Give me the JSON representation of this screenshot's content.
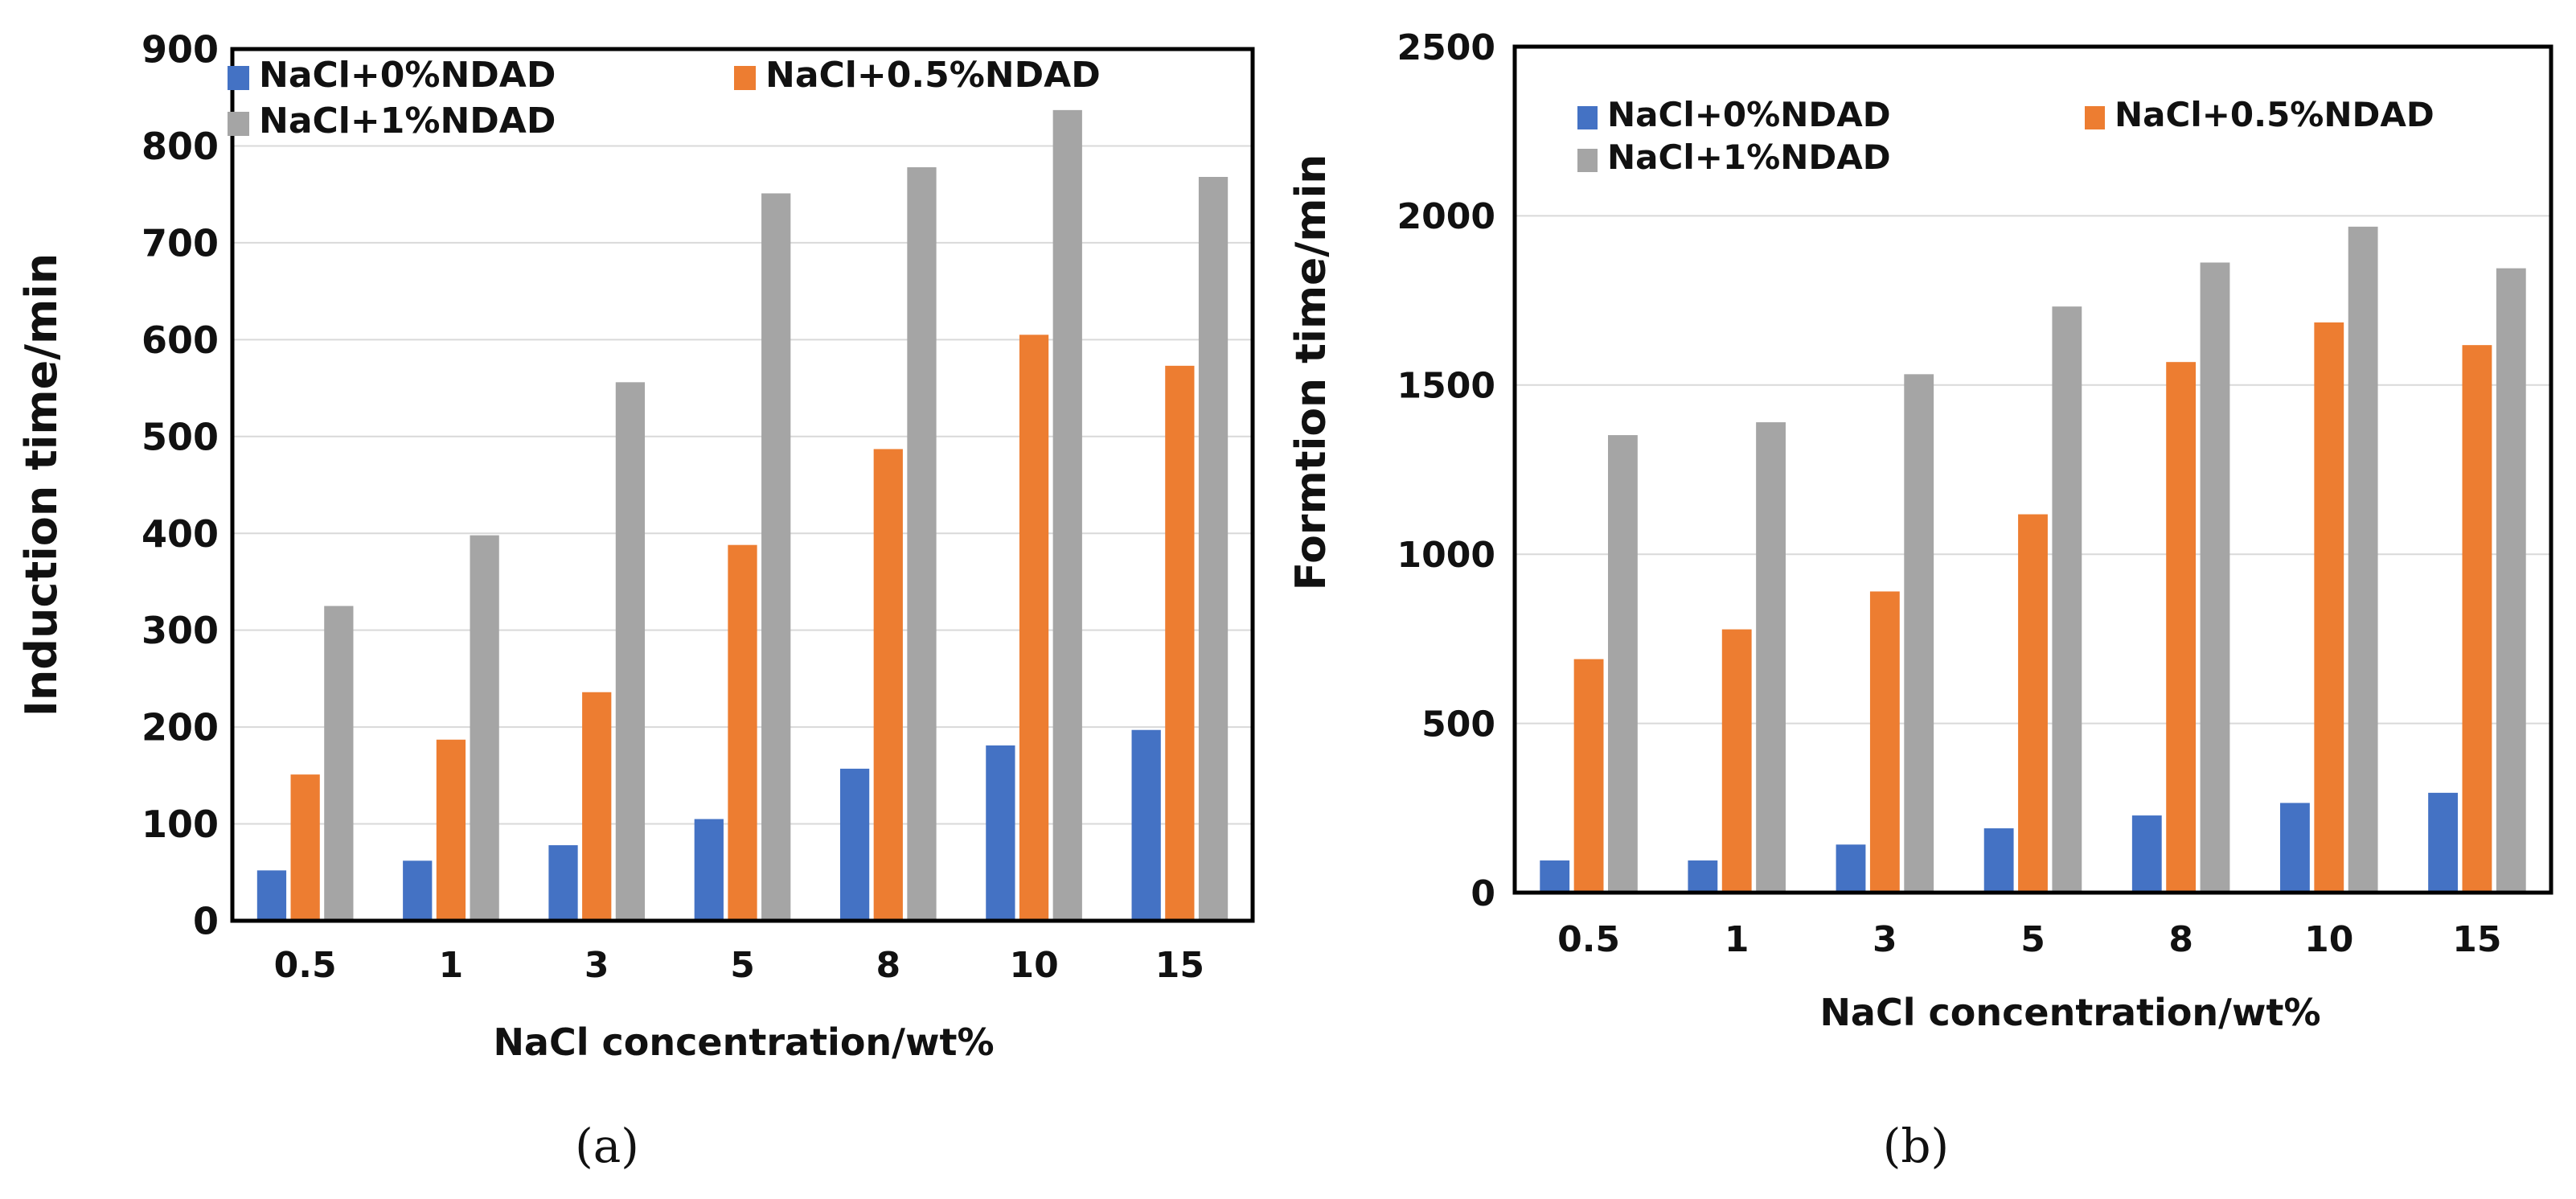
{
  "chart_data": [
    {
      "type": "bar",
      "panel_label": "(a)",
      "categories": [
        "0.5",
        "1",
        "3",
        "5",
        "8",
        "10",
        "15"
      ],
      "series": [
        {
          "name": "NaCl+0%NDAD",
          "color": "#4472c4",
          "values": [
            52,
            62,
            78,
            105,
            157,
            181,
            197
          ]
        },
        {
          "name": "NaCl+0.5%NDAD",
          "color": "#ed7d31",
          "values": [
            151,
            187,
            236,
            388,
            487,
            605,
            573
          ]
        },
        {
          "name": "NaCl+1%NDAD",
          "color": "#a5a5a5",
          "values": [
            325,
            398,
            556,
            751,
            778,
            837,
            768
          ]
        }
      ],
      "title": "",
      "xlabel": "NaCl concentration/wt%",
      "ylabel": "Induction time/min",
      "ylim": [
        0,
        900
      ],
      "yticks": [
        "0",
        "100",
        "200",
        "300",
        "400",
        "500",
        "600",
        "700",
        "800",
        "900"
      ],
      "grid": true,
      "legend": "top-left"
    },
    {
      "type": "bar",
      "panel_label": "(b)",
      "categories": [
        "0.5",
        "1",
        "3",
        "5",
        "8",
        "10",
        "15"
      ],
      "series": [
        {
          "name": "NaCl+0%NDAD",
          "color": "#4472c4",
          "values": [
            95,
            95,
            142,
            190,
            228,
            265,
            295
          ]
        },
        {
          "name": "NaCl+0.5%NDAD",
          "color": "#ed7d31",
          "values": [
            690,
            778,
            890,
            1118,
            1568,
            1685,
            1618
          ]
        },
        {
          "name": "NaCl+1%NDAD",
          "color": "#a5a5a5",
          "values": [
            1352,
            1390,
            1532,
            1732,
            1862,
            1968,
            1845
          ]
        }
      ],
      "title": "",
      "xlabel": "NaCl concentration/wt%",
      "ylabel": "Formtion time/min",
      "ylim": [
        0,
        2500
      ],
      "yticks": [
        "0",
        "500",
        "1000",
        "1500",
        "2000",
        "2500"
      ],
      "grid": true,
      "legend": "top-left"
    }
  ]
}
